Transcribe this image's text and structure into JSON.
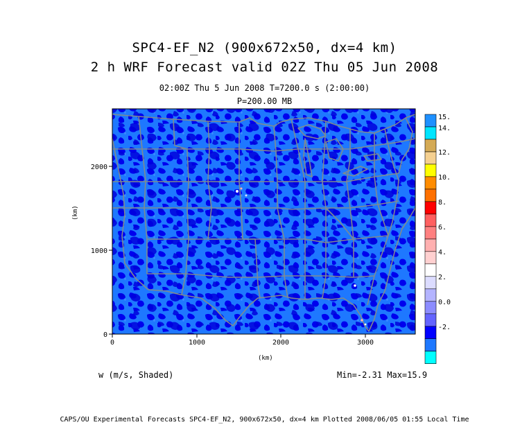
{
  "title": {
    "line1": "SPC4-EF_N2 (900x672x50, dx=4 km)",
    "line2": "2 h  WRF Forecast valid 02Z Thu 05 Jun 2008"
  },
  "subtitle": {
    "line1": "02:00Z Thu   5 Jun 2008    T=7200.0 s (2:00:00)",
    "line2": "P=200.00 MB"
  },
  "axes": {
    "x_unit": "(km)",
    "y_unit": "(km)",
    "x_ticks": [
      "0",
      "1000",
      "2000",
      "3000"
    ],
    "y_ticks": [
      "0",
      "1000",
      "2000"
    ]
  },
  "colorbar": {
    "labels": [
      "15.",
      "14.",
      "12.",
      "10.",
      "8.",
      "6.",
      "4.",
      "2.",
      "0.0",
      "-2."
    ],
    "colors": [
      "#1e90ff",
      "#00e5ff",
      "#d4aa55",
      "#f5d090",
      "#ffff00",
      "#ff8c00",
      "#ff7000",
      "#ff0000",
      "#ff6060",
      "#ff8080",
      "#ffb0b0",
      "#ffd0d0",
      "#ffffff",
      "#dcdcff",
      "#b4b4ff",
      "#8c8cff",
      "#6464ff",
      "#0000ff",
      "#1e78ff",
      "#00ffff"
    ]
  },
  "field": {
    "label": "w (m/s, Shaded)",
    "minmax": "Min=-2.31 Max=15.9"
  },
  "footer": "CAPS/OU Experimental Forecasts  SPC4-EF_N2, 900x672x50, dx=4 km  Plotted 2008/06/05 01:55 Local Time"
}
